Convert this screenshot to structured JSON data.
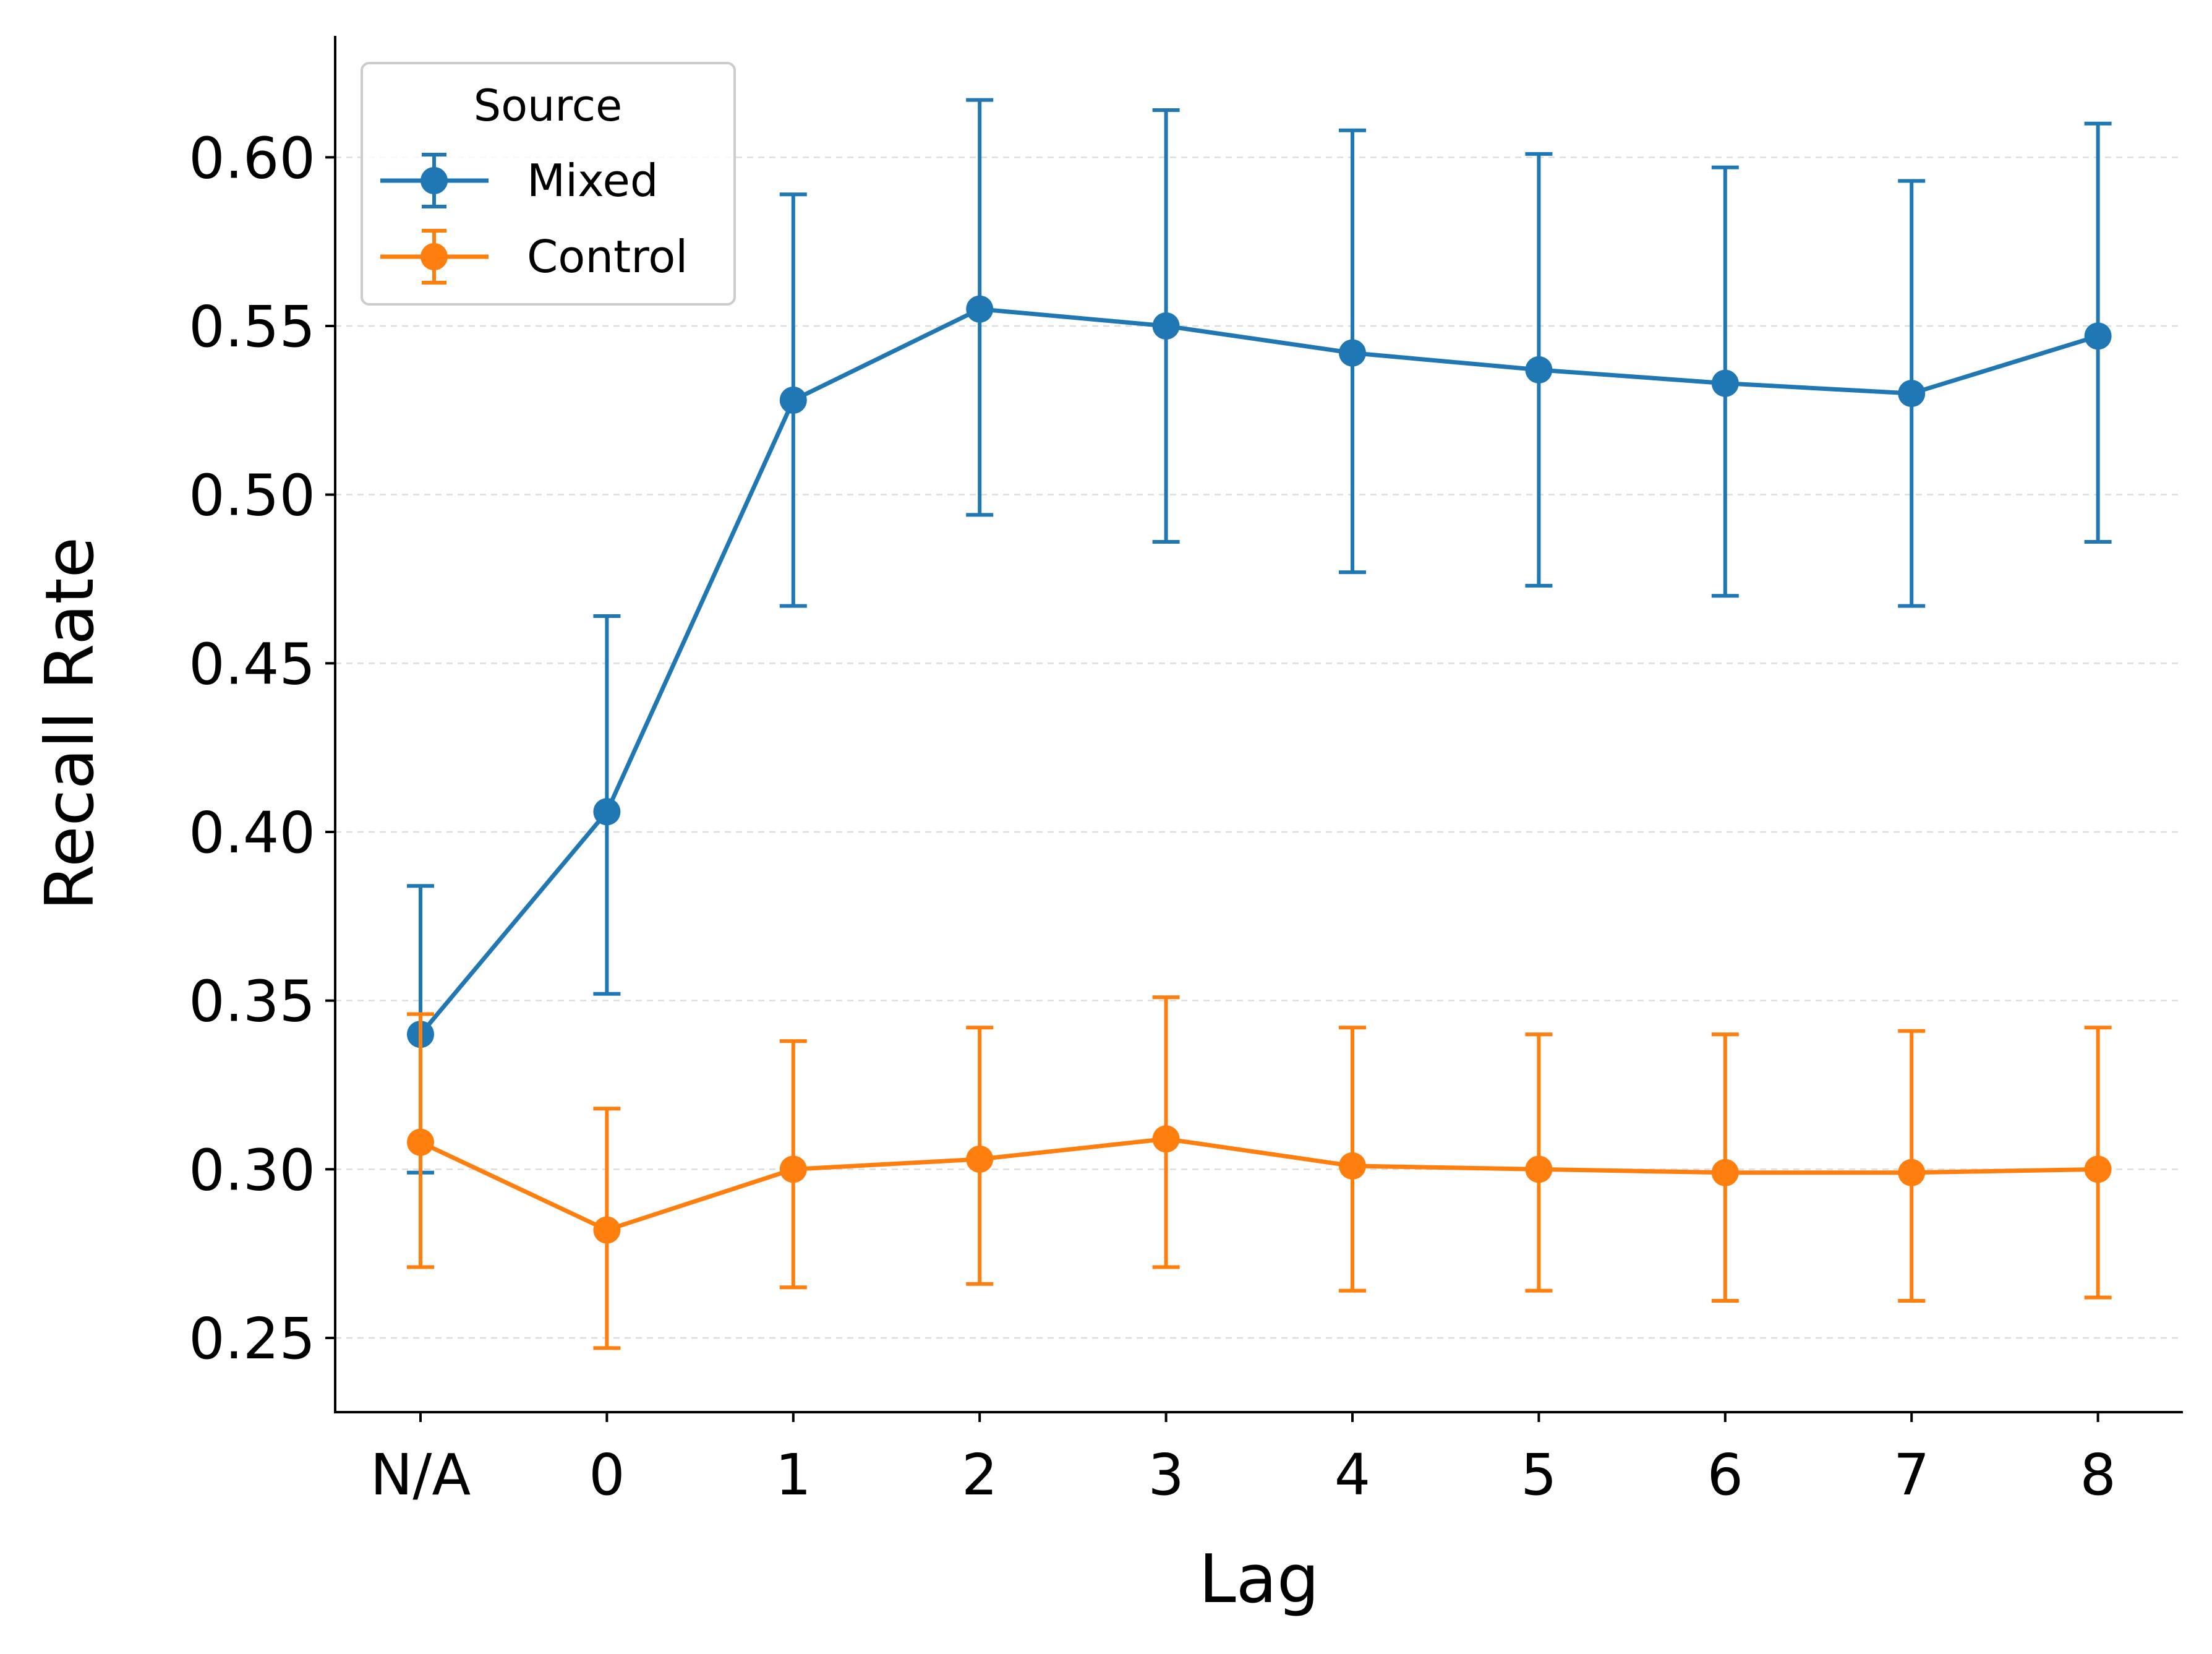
{
  "chart_data": {
    "type": "line",
    "xlabel": "Lag",
    "ylabel": "Recall Rate",
    "categories": [
      "N/A",
      "0",
      "1",
      "2",
      "3",
      "4",
      "5",
      "6",
      "7",
      "8"
    ],
    "ylim": [
      0.228,
      0.636
    ],
    "yticks": [
      0.25,
      0.3,
      0.35,
      0.4,
      0.45,
      0.5,
      0.55,
      0.6
    ],
    "ytick_labels": [
      "0.25",
      "0.30",
      "0.35",
      "0.40",
      "0.45",
      "0.50",
      "0.55",
      "0.60"
    ],
    "grid": "horizontal, dashed, light",
    "legend": {
      "title": "Source",
      "placement": "top-left"
    },
    "error_bars": true,
    "series": [
      {
        "name": "Mixed",
        "color": "#1f77b4",
        "values": [
          0.34,
          0.406,
          0.528,
          0.555,
          0.55,
          0.542,
          0.537,
          0.533,
          0.53,
          0.547
        ],
        "lower": [
          0.299,
          0.352,
          0.467,
          0.494,
          0.486,
          0.477,
          0.473,
          0.47,
          0.467,
          0.486
        ],
        "upper": [
          0.384,
          0.464,
          0.589,
          0.617,
          0.614,
          0.608,
          0.601,
          0.597,
          0.593,
          0.61
        ]
      },
      {
        "name": "Control",
        "color": "#ff7f0e",
        "values": [
          0.308,
          0.282,
          0.3,
          0.303,
          0.309,
          0.301,
          0.3,
          0.299,
          0.299,
          0.3
        ],
        "lower": [
          0.271,
          0.247,
          0.265,
          0.266,
          0.271,
          0.264,
          0.264,
          0.261,
          0.261,
          0.262
        ],
        "upper": [
          0.346,
          0.318,
          0.338,
          0.342,
          0.351,
          0.342,
          0.34,
          0.34,
          0.341,
          0.342
        ]
      }
    ]
  }
}
